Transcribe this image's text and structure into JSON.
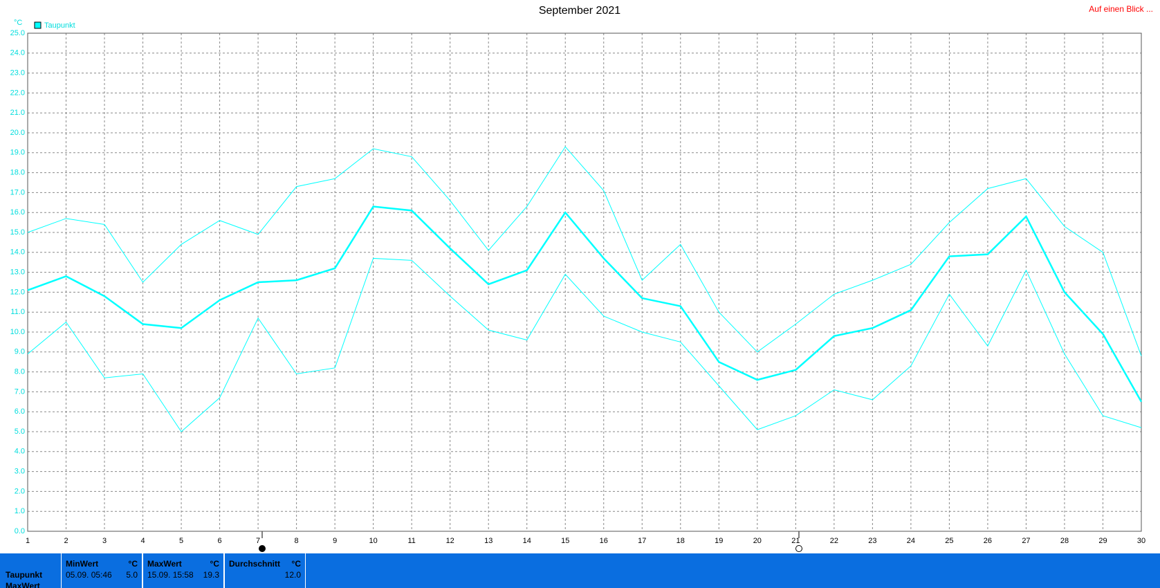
{
  "chart_data": {
    "type": "line",
    "title": "September 2021",
    "y_label": "°C",
    "grid": true,
    "legend": "top-left",
    "x": [
      1,
      2,
      3,
      4,
      5,
      6,
      7,
      8,
      9,
      10,
      11,
      12,
      13,
      14,
      15,
      16,
      17,
      18,
      19,
      20,
      21,
      22,
      23,
      24,
      25,
      26,
      27,
      28,
      29,
      30
    ],
    "xlim": [
      1,
      30
    ],
    "xticks": [
      1,
      2,
      3,
      4,
      5,
      6,
      7,
      8,
      9,
      10,
      11,
      12,
      13,
      14,
      15,
      16,
      17,
      18,
      19,
      20,
      21,
      22,
      23,
      24,
      25,
      26,
      27,
      28,
      29,
      30
    ],
    "ylim": [
      0,
      25
    ],
    "yticks": [
      {
        "value": 0,
        "label": "0.0"
      },
      {
        "value": 1,
        "label": "1.0"
      },
      {
        "value": 2,
        "label": "2.0"
      },
      {
        "value": 3,
        "label": "3.0"
      },
      {
        "value": 4,
        "label": "4.0"
      },
      {
        "value": 5,
        "label": "5.0"
      },
      {
        "value": 6,
        "label": "6.0"
      },
      {
        "value": 7,
        "label": "7.0"
      },
      {
        "value": 8,
        "label": "8.0"
      },
      {
        "value": 9,
        "label": "9.0"
      },
      {
        "value": 10,
        "label": "10.0"
      },
      {
        "value": 11,
        "label": "11.0"
      },
      {
        "value": 12,
        "label": "12.0"
      },
      {
        "value": 13,
        "label": "13.0"
      },
      {
        "value": 14,
        "label": "14.0"
      },
      {
        "value": 15,
        "label": "15.0"
      },
      {
        "value": 16,
        "label": "16.0"
      },
      {
        "value": 17,
        "label": "17.0"
      },
      {
        "value": 18,
        "label": "18.0"
      },
      {
        "value": 19,
        "label": "19.0"
      },
      {
        "value": 20,
        "label": "20.0"
      },
      {
        "value": 21,
        "label": "21.0"
      },
      {
        "value": 22,
        "label": "22.0"
      },
      {
        "value": 23,
        "label": "23.0"
      },
      {
        "value": 24,
        "label": "24.0"
      },
      {
        "value": 25,
        "label": "25.0"
      }
    ],
    "series": [
      {
        "color": "#00ffff",
        "width": 1,
        "values": [
          15.0,
          15.7,
          15.4,
          12.5,
          14.4,
          15.6,
          14.9,
          17.3,
          17.7,
          19.2,
          18.8,
          16.6,
          14.1,
          16.3,
          19.3,
          17.1,
          12.6,
          14.4,
          11.0,
          9.0,
          10.4,
          11.9,
          12.6,
          13.4,
          15.5,
          17.2,
          17.7,
          15.3,
          14.0,
          8.8
        ]
      },
      {
        "name": "Taupunkt",
        "color": "#00ffff",
        "width": 2.5,
        "values": [
          12.1,
          12.8,
          11.8,
          10.4,
          10.2,
          11.6,
          12.5,
          12.6,
          13.2,
          16.3,
          16.1,
          14.2,
          12.4,
          13.1,
          16.0,
          13.7,
          11.7,
          11.3,
          8.5,
          7.6,
          8.1,
          9.8,
          10.2,
          11.1,
          13.8,
          13.9,
          15.8,
          12.0,
          9.9,
          6.5
        ]
      },
      {
        "color": "#00ffff",
        "width": 1,
        "values": [
          8.9,
          10.5,
          7.7,
          7.9,
          5.0,
          6.7,
          10.7,
          7.9,
          8.2,
          13.7,
          13.6,
          11.8,
          10.1,
          9.6,
          12.9,
          10.8,
          10.0,
          9.5,
          7.3,
          5.1,
          5.8,
          7.1,
          6.6,
          8.3,
          11.9,
          9.3,
          13.1,
          8.9,
          5.8,
          5.2
        ]
      }
    ]
  },
  "top_link": "Auf einen Blick ...",
  "stats": {
    "row_labels": [
      "Taupunkt",
      "MaxWert"
    ],
    "columns": [
      {
        "header": "MinWert",
        "unit": "°C",
        "time": "05.09. 05:46",
        "value": "5.0"
      },
      {
        "header": "MaxWert",
        "unit": "°C",
        "time": "15.09. 15:58",
        "value": "19.3"
      },
      {
        "header": "Durchschnitt",
        "unit": "°C",
        "value": "12.0"
      }
    ]
  }
}
